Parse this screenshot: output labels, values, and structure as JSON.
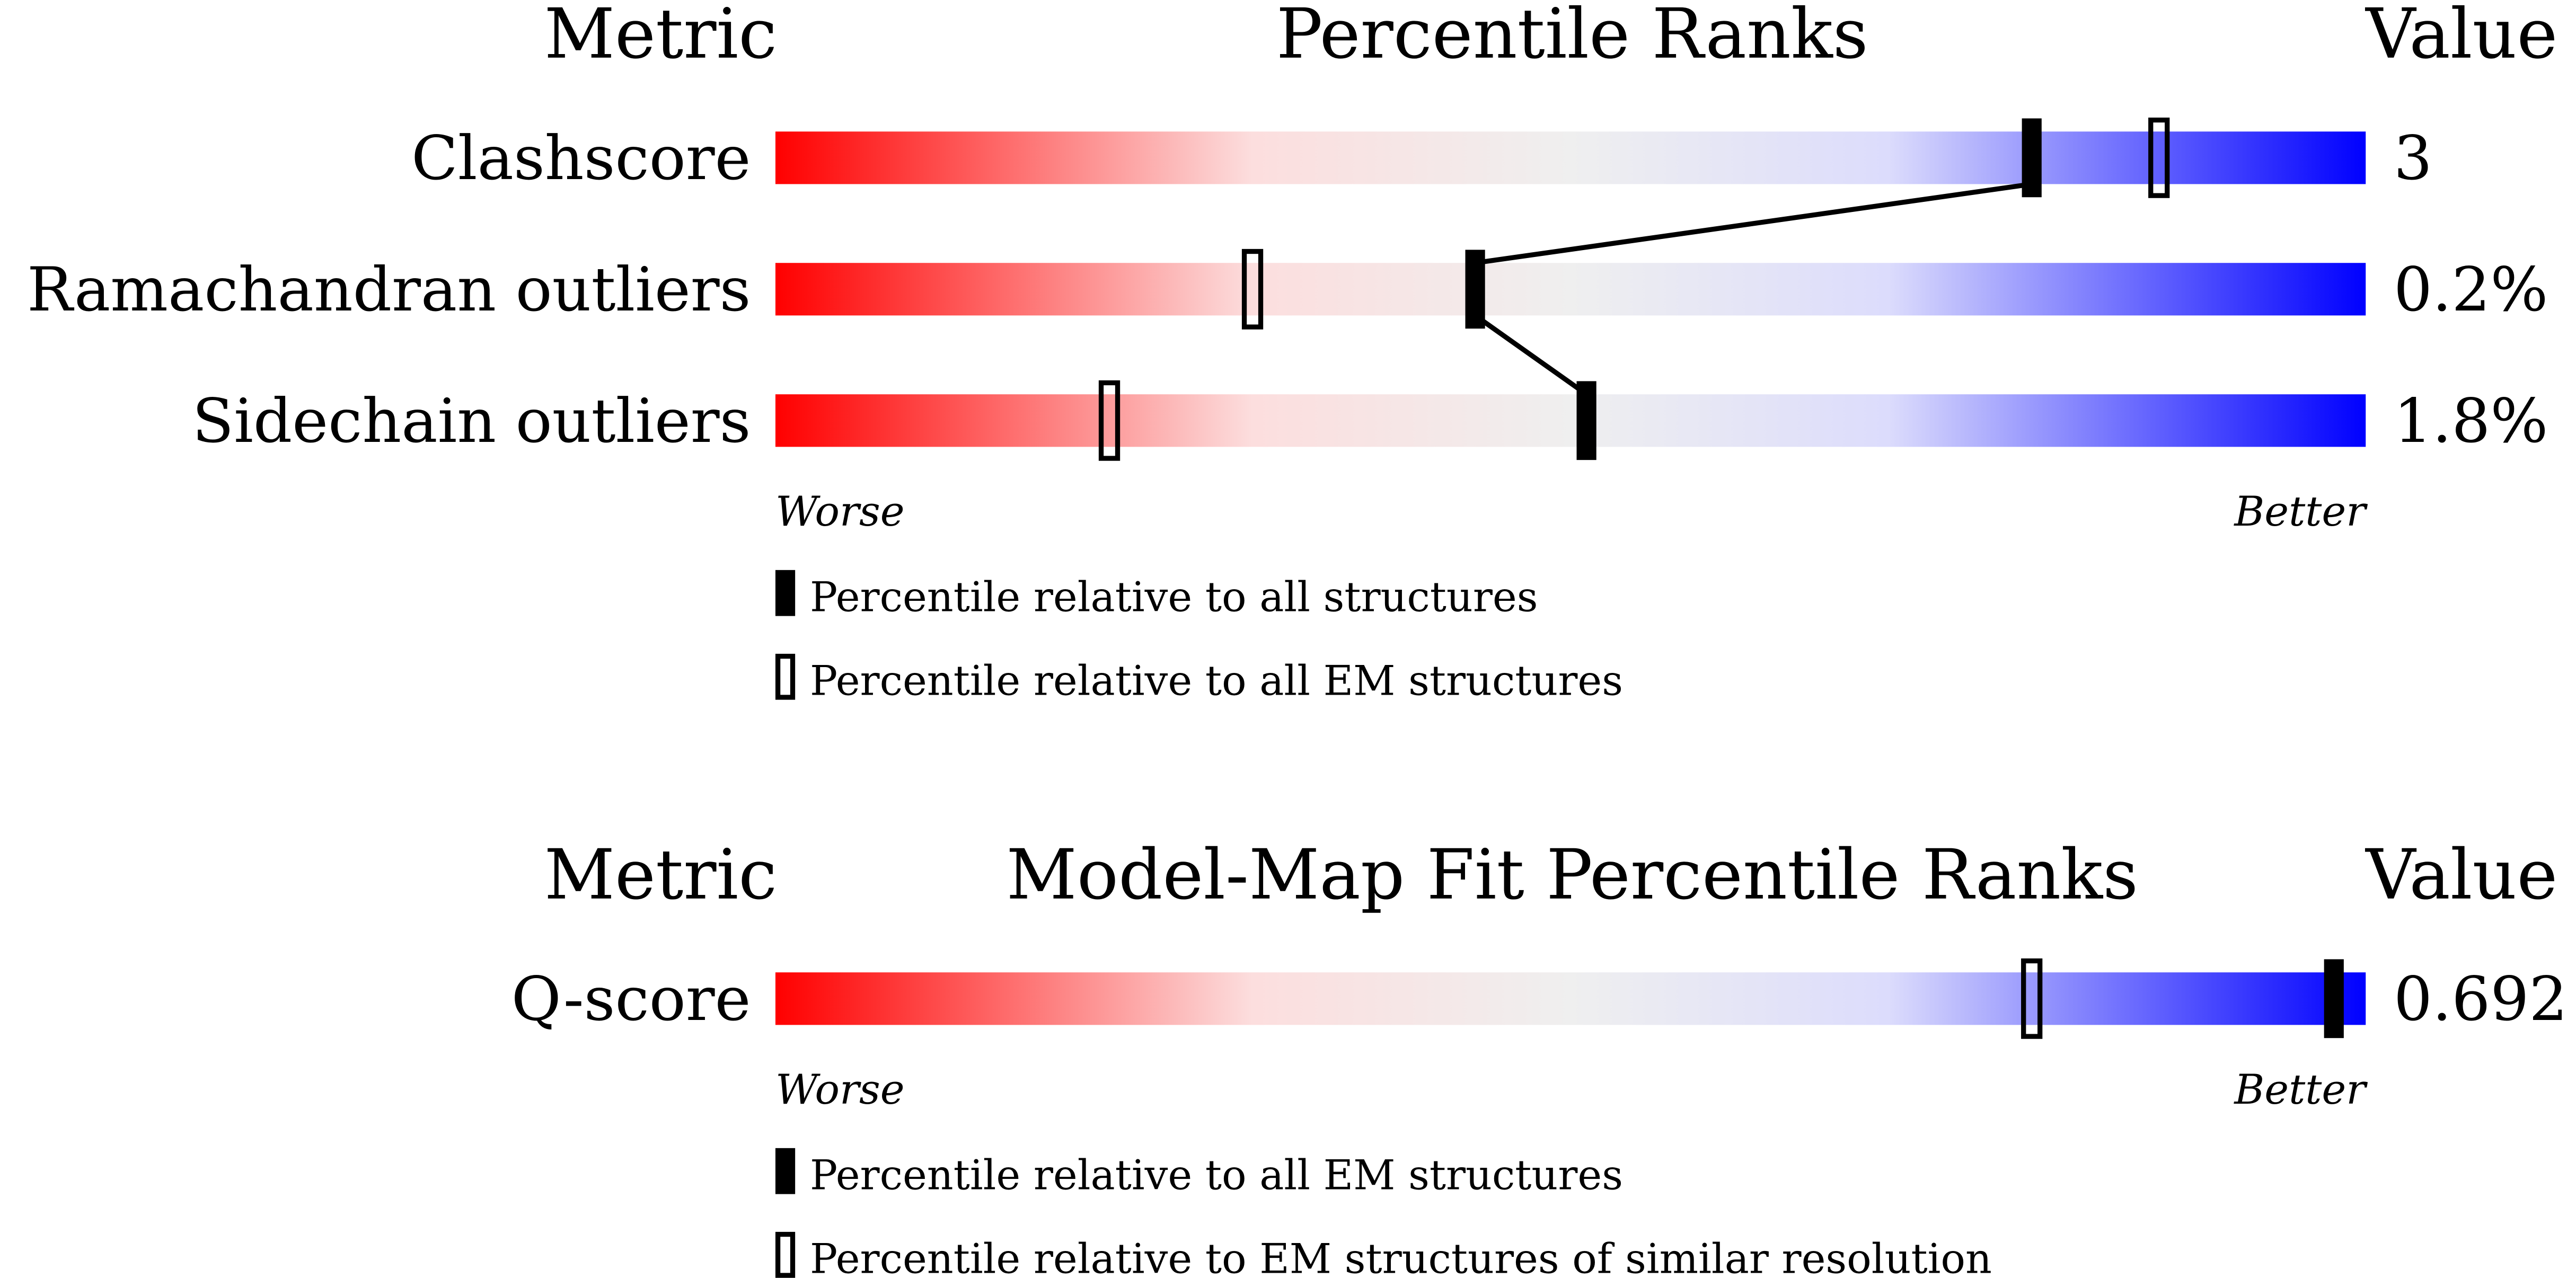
{
  "chart_data": [
    {
      "type": "percentile-slider",
      "header": [
        "Metric",
        "Percentile Ranks",
        "Value"
      ],
      "categories": [
        "Clashscore",
        "Ramachandran outliers",
        "Sidechain outliers"
      ],
      "metric_values": [
        "3",
        "0.2%",
        "1.8%"
      ],
      "series": [
        {
          "name": "Percentile relative to all structures",
          "marker": "filled",
          "values": [
            79,
            44,
            51
          ]
        },
        {
          "name": "Percentile relative to all EM structures",
          "marker": "open",
          "values": [
            87,
            30,
            21
          ]
        }
      ],
      "xlim": [
        0,
        100
      ],
      "axis_labels": [
        "Worse",
        "Better"
      ],
      "connect_series": 0
    },
    {
      "type": "percentile-slider",
      "header": [
        "Metric",
        "Model-Map Fit Percentile Ranks",
        "Value"
      ],
      "categories": [
        "Q-score"
      ],
      "metric_values": [
        "0.692"
      ],
      "series": [
        {
          "name": "Percentile relative to all EM structures",
          "marker": "filled",
          "values": [
            98
          ]
        },
        {
          "name": "Percentile relative to EM structures of similar resolution",
          "marker": "open",
          "values": [
            79
          ]
        }
      ],
      "xlim": [
        0,
        100
      ],
      "axis_labels": [
        "Worse",
        "Better"
      ],
      "connect_series": 0
    }
  ]
}
